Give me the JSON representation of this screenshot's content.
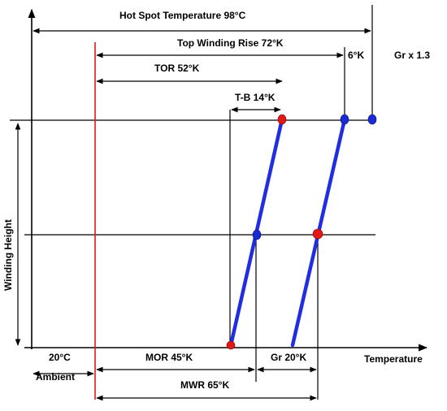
{
  "labels": {
    "hot_spot": "Hot Spot Temperature  98°C",
    "top_winding_rise": "Top Winding Rise  72°K",
    "six_k": "6°K",
    "gr_factor": "Gr x 1.3",
    "tor": "TOR  52°K",
    "tb": "T-B  14°K",
    "winding_height": "Winding Height",
    "ambient_temp": "20°C",
    "ambient": "Ambient",
    "mor": "MOR  45°K",
    "gr": "Gr  20°K",
    "temperature": "Temperature",
    "mwr": "MWR  65°K"
  },
  "colors": {
    "winding_line": "#1f2ee0",
    "ambient_line": "#e01818",
    "red_dot": "#e01818",
    "blue_dot": "#1a2bd6"
  }
}
